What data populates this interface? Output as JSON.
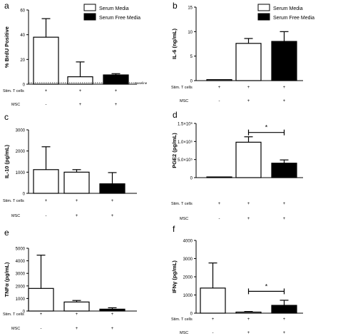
{
  "chart_data": [
    {
      "type": "bar",
      "panel_letter": "a",
      "ylabel": "% BrdU Positive",
      "ylim": [
        0,
        60
      ],
      "yticks": [
        "0",
        "20",
        "40",
        "60"
      ],
      "ytick_values": [
        0,
        20,
        40,
        60
      ],
      "annotation": "Baseline",
      "legend": [
        "Serum Media",
        "Serum Free Media"
      ],
      "legend_position": "top-right",
      "row_labels": [
        "Stim. T cells",
        "MSC"
      ],
      "conditions": [
        [
          "+",
          "-"
        ],
        [
          "+",
          "+"
        ],
        [
          "+",
          "+"
        ]
      ],
      "values": [
        38,
        6,
        7.5
      ],
      "errors": [
        15,
        12,
        1
      ],
      "fills": [
        "white",
        "white",
        "black"
      ]
    },
    {
      "type": "bar",
      "panel_letter": "b",
      "ylabel": "IL-6 (ng/mL)",
      "ylim": [
        0,
        15
      ],
      "yticks": [
        "0",
        "5",
        "10",
        "15"
      ],
      "ytick_values": [
        0,
        5,
        10,
        15
      ],
      "legend": [
        "Serum Media",
        "Serum Free Media"
      ],
      "legend_position": "top-right",
      "row_labels": [
        "Stim. T cells",
        "MSC"
      ],
      "conditions": [
        [
          "+",
          "-"
        ],
        [
          "+",
          "+"
        ],
        [
          "+",
          "+"
        ]
      ],
      "values": [
        0.2,
        7.6,
        8.0
      ],
      "errors": [
        0,
        1.0,
        2.0
      ],
      "fills": [
        "white",
        "white",
        "black"
      ]
    },
    {
      "type": "bar",
      "panel_letter": "c",
      "ylabel": "IL-10 (pg/mL)",
      "ylim": [
        0,
        3000
      ],
      "yticks": [
        "0",
        "1000",
        "2000",
        "3000"
      ],
      "ytick_values": [
        0,
        1000,
        2000,
        3000
      ],
      "row_labels": [
        "Stim. T cells",
        "MSC"
      ],
      "conditions": [
        [
          "+",
          "-"
        ],
        [
          "+",
          "+"
        ],
        [
          "+",
          "+"
        ]
      ],
      "values": [
        1120,
        1000,
        450
      ],
      "errors": [
        1080,
        120,
        530
      ],
      "fills": [
        "white",
        "white",
        "black"
      ]
    },
    {
      "type": "bar",
      "panel_letter": "d",
      "ylabel": "PGE2 (pg/mL)",
      "ylim": [
        0,
        1500000
      ],
      "yticks": [
        "0",
        "5.0×10⁵",
        "1.0×10⁶",
        "1.5×10⁶"
      ],
      "ytick_values": [
        0,
        500000,
        1000000,
        1500000
      ],
      "row_labels": [
        "Stim. T cells",
        "MSC"
      ],
      "conditions": [
        [
          "+",
          "-"
        ],
        [
          "+",
          "+"
        ],
        [
          "+",
          "+"
        ]
      ],
      "values": [
        10000,
        980000,
        400000
      ],
      "errors": [
        0,
        150000,
        90000
      ],
      "fills": [
        "white",
        "white",
        "black"
      ],
      "significance": {
        "label": "*",
        "between": [
          1,
          2
        ],
        "y": 1250000
      }
    },
    {
      "type": "bar",
      "panel_letter": "e",
      "ylabel": "TNFα (pg/mL)",
      "ylim": [
        0,
        5000
      ],
      "yticks": [
        "0",
        "1000",
        "2000",
        "3000",
        "4000",
        "5000"
      ],
      "ytick_values": [
        0,
        1000,
        2000,
        3000,
        4000,
        5000
      ],
      "row_labels": [
        "Stim. T cells",
        "MSC"
      ],
      "conditions": [
        [
          "+",
          "-"
        ],
        [
          "+",
          "+"
        ],
        [
          "+",
          "+"
        ]
      ],
      "values": [
        1800,
        720,
        150
      ],
      "errors": [
        2650,
        120,
        110
      ],
      "fills": [
        "white",
        "white",
        "black"
      ]
    },
    {
      "type": "bar",
      "panel_letter": "f",
      "ylabel": "IFNγ (pg/mL)",
      "ylim": [
        0,
        4000
      ],
      "yticks": [
        "0",
        "1000",
        "2000",
        "3000",
        "4000"
      ],
      "ytick_values": [
        0,
        1000,
        2000,
        3000,
        4000
      ],
      "row_labels": [
        "Stim. T cells",
        "MSC"
      ],
      "conditions": [
        [
          "+",
          "-"
        ],
        [
          "+",
          "+"
        ],
        [
          "+",
          "+"
        ]
      ],
      "values": [
        1380,
        60,
        430
      ],
      "errors": [
        1380,
        30,
        280
      ],
      "fills": [
        "white",
        "white",
        "black"
      ],
      "significance": {
        "label": "*",
        "between": [
          1,
          2
        ],
        "y": 1200
      }
    }
  ]
}
